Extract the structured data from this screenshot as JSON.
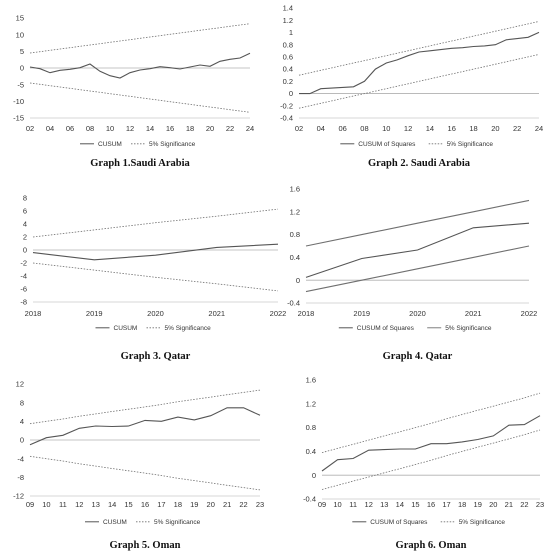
{
  "colors": {
    "cusum": "#555555",
    "band": "#6f6f6f",
    "axis": "#b0b0b0"
  },
  "chart_data": [
    {
      "type": "line",
      "caption": "Graph 1.Saudi Arabia",
      "x_ticks": [
        "02",
        "04",
        "06",
        "08",
        "10",
        "12",
        "14",
        "16",
        "18",
        "20",
        "22",
        "24"
      ],
      "y_ticks": [
        15,
        10,
        5,
        0,
        -5,
        -10,
        -15
      ],
      "ylim": [
        -15,
        15
      ],
      "x": [
        2002,
        2003,
        2004,
        2005,
        2006,
        2007,
        2008,
        2009,
        2010,
        2011,
        2012,
        2013,
        2014,
        2015,
        2016,
        2017,
        2018,
        2019,
        2020,
        2021,
        2022,
        2023,
        2024
      ],
      "series": [
        {
          "name": "CUSUM",
          "style": "solid",
          "values": [
            0.3,
            -0.2,
            -1.4,
            -0.7,
            -0.4,
            0.1,
            1.2,
            -1.0,
            -2.3,
            -3.0,
            -1.4,
            -0.6,
            -0.2,
            0.4,
            0.1,
            -0.3,
            0.3,
            0.9,
            0.5,
            2.0,
            2.6,
            3.0,
            4.4
          ]
        },
        {
          "name": "5% Significance",
          "style": "dotted",
          "values": [
            4.5,
            4.9,
            5.3,
            5.7,
            6.1,
            6.5,
            6.9,
            7.3,
            7.7,
            8.1,
            8.5,
            8.9,
            9.3,
            9.7,
            10.1,
            10.5,
            10.9,
            11.3,
            11.7,
            12.1,
            12.5,
            12.9,
            13.3
          ]
        },
        {
          "name": "",
          "style": "dotted",
          "values": [
            -4.5,
            -4.9,
            -5.3,
            -5.7,
            -6.1,
            -6.5,
            -6.9,
            -7.3,
            -7.7,
            -8.1,
            -8.5,
            -8.9,
            -9.3,
            -9.7,
            -10.1,
            -10.5,
            -10.9,
            -11.3,
            -11.7,
            -12.1,
            -12.5,
            -12.9,
            -13.3
          ]
        }
      ]
    },
    {
      "type": "line",
      "caption": "Graph 2. Saudi Arabia",
      "x_ticks": [
        "02",
        "04",
        "06",
        "08",
        "10",
        "12",
        "14",
        "16",
        "18",
        "20",
        "22",
        "24"
      ],
      "y_ticks": [
        1.4,
        1.2,
        1.0,
        0.8,
        0.6,
        0.4,
        0.2,
        0.0,
        -0.2,
        -0.4
      ],
      "ylim": [
        -0.4,
        1.4
      ],
      "x": [
        2002,
        2003,
        2004,
        2005,
        2006,
        2007,
        2008,
        2009,
        2010,
        2011,
        2012,
        2013,
        2014,
        2015,
        2016,
        2017,
        2018,
        2019,
        2020,
        2021,
        2022,
        2023,
        2024
      ],
      "series": [
        {
          "name": "CUSUM of Squares",
          "style": "solid",
          "values": [
            0.0,
            0.0,
            0.08,
            0.09,
            0.1,
            0.11,
            0.2,
            0.4,
            0.5,
            0.55,
            0.62,
            0.68,
            0.7,
            0.72,
            0.74,
            0.75,
            0.77,
            0.78,
            0.8,
            0.88,
            0.9,
            0.92,
            1.0
          ]
        },
        {
          "name": "5% Significance",
          "style": "dotted",
          "values": [
            0.3,
            0.34,
            0.38,
            0.42,
            0.46,
            0.5,
            0.54,
            0.58,
            0.62,
            0.66,
            0.7,
            0.74,
            0.78,
            0.82,
            0.86,
            0.9,
            0.94,
            0.98,
            1.02,
            1.06,
            1.1,
            1.14,
            1.18
          ]
        },
        {
          "name": "",
          "style": "dotted",
          "values": [
            -0.24,
            -0.2,
            -0.16,
            -0.12,
            -0.08,
            -0.04,
            0.0,
            0.04,
            0.08,
            0.12,
            0.16,
            0.2,
            0.24,
            0.28,
            0.32,
            0.36,
            0.4,
            0.44,
            0.48,
            0.52,
            0.56,
            0.6,
            0.64
          ]
        }
      ]
    },
    {
      "type": "line",
      "caption": "Graph 3. Qatar",
      "x_ticks": [
        "2018",
        "2019",
        "2020",
        "2021",
        "2022"
      ],
      "y_ticks": [
        8,
        6,
        4,
        2,
        0,
        -2,
        -4,
        -6,
        -8
      ],
      "ylim": [
        -8,
        8
      ],
      "x": [
        2018,
        2019,
        2020,
        2021,
        2022
      ],
      "series": [
        {
          "name": "CUSUM",
          "style": "solid",
          "values": [
            -0.4,
            -1.5,
            -0.8,
            0.4,
            0.9
          ]
        },
        {
          "name": "5% Significance",
          "style": "dotted",
          "values": [
            2.0,
            3.1,
            4.2,
            5.2,
            6.3
          ]
        },
        {
          "name": "",
          "style": "dotted",
          "values": [
            -2.0,
            -3.1,
            -4.2,
            -5.2,
            -6.3
          ]
        }
      ]
    },
    {
      "type": "line",
      "caption": "Graph 4. Qatar",
      "x_ticks": [
        "2018",
        "2019",
        "2020",
        "2021",
        "2022"
      ],
      "y_ticks": [
        1.6,
        1.2,
        0.8,
        0.4,
        0.0,
        -0.4
      ],
      "ylim": [
        -0.4,
        1.6
      ],
      "x": [
        2018,
        2019,
        2020,
        2021,
        2022
      ],
      "series": [
        {
          "name": "CUSUM of Squares",
          "style": "solid",
          "values": [
            0.05,
            0.38,
            0.53,
            0.92,
            1.0
          ]
        },
        {
          "name": "5% Significance",
          "style": "solid",
          "values": [
            0.6,
            0.8,
            1.0,
            1.2,
            1.4
          ]
        },
        {
          "name": "",
          "style": "solid",
          "values": [
            -0.2,
            0.0,
            0.2,
            0.4,
            0.6
          ]
        }
      ]
    },
    {
      "type": "line",
      "caption": "Graph 5. Oman",
      "x_ticks": [
        "09",
        "10",
        "11",
        "12",
        "13",
        "14",
        "15",
        "16",
        "17",
        "18",
        "19",
        "20",
        "21",
        "22",
        "23"
      ],
      "y_ticks": [
        12,
        8,
        4,
        0,
        -4,
        -8,
        -12
      ],
      "ylim": [
        -12,
        12
      ],
      "x": [
        2009,
        2010,
        2011,
        2012,
        2013,
        2014,
        2015,
        2016,
        2017,
        2018,
        2019,
        2020,
        2021,
        2022,
        2023
      ],
      "series": [
        {
          "name": "CUSUM",
          "style": "solid",
          "values": [
            -1.0,
            0.5,
            1.0,
            2.5,
            3.0,
            2.9,
            3.0,
            4.2,
            4.0,
            4.9,
            4.3,
            5.2,
            6.9,
            6.9,
            5.3
          ]
        },
        {
          "name": "5% Significance",
          "style": "dotted",
          "values": [
            3.5,
            4.0,
            4.5,
            5.1,
            5.6,
            6.1,
            6.6,
            7.1,
            7.6,
            8.2,
            8.7,
            9.2,
            9.7,
            10.2,
            10.7
          ]
        },
        {
          "name": "",
          "style": "dotted",
          "values": [
            -3.5,
            -4.0,
            -4.5,
            -5.1,
            -5.6,
            -6.1,
            -6.6,
            -7.1,
            -7.6,
            -8.2,
            -8.7,
            -9.2,
            -9.7,
            -10.2,
            -10.7
          ]
        }
      ]
    },
    {
      "type": "line",
      "caption": "Graph 6. Oman",
      "x_ticks": [
        "09",
        "10",
        "11",
        "12",
        "13",
        "14",
        "15",
        "16",
        "17",
        "18",
        "19",
        "20",
        "21",
        "22",
        "23"
      ],
      "y_ticks": [
        1.6,
        1.2,
        0.8,
        0.4,
        0.0,
        -0.4
      ],
      "ylim": [
        -0.4,
        1.6
      ],
      "x": [
        2009,
        2010,
        2011,
        2012,
        2013,
        2014,
        2015,
        2016,
        2017,
        2018,
        2019,
        2020,
        2021,
        2022,
        2023
      ],
      "series": [
        {
          "name": "CUSUM of Squares",
          "style": "solid",
          "values": [
            0.07,
            0.26,
            0.28,
            0.42,
            0.43,
            0.44,
            0.44,
            0.53,
            0.53,
            0.56,
            0.6,
            0.66,
            0.84,
            0.85,
            1.0
          ]
        },
        {
          "name": "5% Significance",
          "style": "dotted",
          "values": [
            0.38,
            0.45,
            0.52,
            0.59,
            0.66,
            0.73,
            0.8,
            0.87,
            0.95,
            1.02,
            1.09,
            1.16,
            1.23,
            1.3,
            1.38
          ]
        },
        {
          "name": "",
          "style": "dotted",
          "values": [
            -0.24,
            -0.17,
            -0.1,
            -0.03,
            0.04,
            0.11,
            0.18,
            0.25,
            0.33,
            0.4,
            0.47,
            0.54,
            0.61,
            0.68,
            0.76
          ]
        }
      ]
    }
  ]
}
